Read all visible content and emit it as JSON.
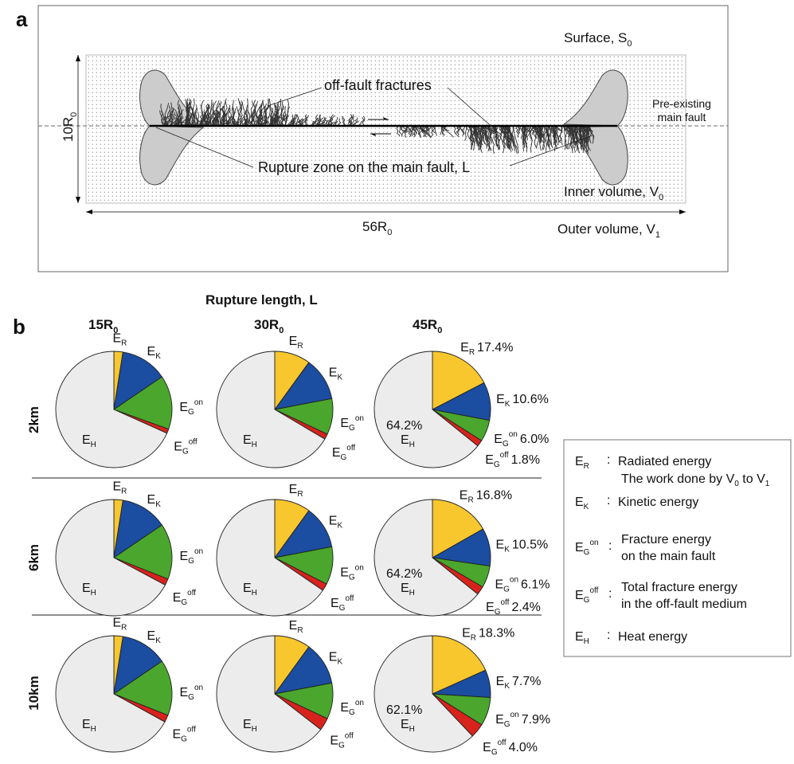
{
  "panel_a": {
    "label": "a",
    "surface_label": "Surface, S",
    "surface_sub": "0",
    "preexisting_line1": "Pre-existing",
    "preexisting_line2": "main fault",
    "offfault_label": "off-fault fractures",
    "rupture_label": "Rupture zone on the main fault, L",
    "inner_label": "Inner volume, V",
    "inner_sub": "0",
    "outer_label": "Outer volume, V",
    "outer_sub": "1",
    "height_label": "10R",
    "height_sub": "0",
    "width_label": "56R",
    "width_sub": "0"
  },
  "panel_b": {
    "label": "b",
    "title": "Rupture length, L",
    "col_headers": [
      {
        "main": "15R",
        "sub": "0"
      },
      {
        "main": "30R",
        "sub": "0"
      },
      {
        "main": "45R",
        "sub": "0"
      }
    ],
    "row_headers": [
      "2km",
      "6km",
      "10km"
    ],
    "colors": {
      "ER": "#f8c72e",
      "EK": "#1b4da0",
      "EGon": "#4aa62c",
      "EGoff": "#d8231c",
      "EH": "#ececec"
    }
  },
  "chart_data": {
    "type": "pie",
    "title": "Rupture length, L",
    "slice_labels": [
      "E_R",
      "E_K",
      "E_G^on",
      "E_G^off",
      "E_H"
    ],
    "rows": [
      "2km",
      "6km",
      "10km"
    ],
    "columns": [
      "15R_0",
      "30R_0",
      "45R_0"
    ],
    "pies": [
      {
        "row": "2km",
        "column": "15R_0",
        "values": [
          2.5,
          13.0,
          15.0,
          1.2,
          68.3
        ],
        "printed": [
          "",
          "",
          "",
          "",
          ""
        ]
      },
      {
        "row": "2km",
        "column": "30R_0",
        "values": [
          10.0,
          12.0,
          10.0,
          1.5,
          66.5
        ],
        "printed": [
          "",
          "",
          "",
          "",
          ""
        ]
      },
      {
        "row": "2km",
        "column": "45R_0",
        "values": [
          17.4,
          10.6,
          6.0,
          1.8,
          64.2
        ],
        "printed": [
          "17.4%",
          "10.6%",
          "6.0%",
          "1.8%",
          "64.2%"
        ]
      },
      {
        "row": "6km",
        "column": "15R_0",
        "values": [
          2.5,
          13.0,
          15.5,
          1.8,
          67.2
        ],
        "printed": [
          "",
          "",
          "",
          "",
          ""
        ]
      },
      {
        "row": "6km",
        "column": "30R_0",
        "values": [
          10.0,
          12.0,
          10.5,
          2.0,
          65.5
        ],
        "printed": [
          "",
          "",
          "",
          "",
          ""
        ]
      },
      {
        "row": "6km",
        "column": "45R_0",
        "values": [
          16.8,
          10.5,
          6.1,
          2.4,
          64.2
        ],
        "printed": [
          "16.8%",
          "10.5%",
          "6.1%",
          "2.4%",
          "64.2%"
        ]
      },
      {
        "row": "10km",
        "column": "15R_0",
        "values": [
          2.5,
          13.0,
          15.5,
          2.0,
          67.0
        ],
        "printed": [
          "",
          "",
          "",
          "",
          ""
        ]
      },
      {
        "row": "10km",
        "column": "30R_0",
        "values": [
          10.0,
          12.0,
          10.0,
          3.5,
          64.5
        ],
        "printed": [
          "",
          "",
          "",
          "",
          ""
        ]
      },
      {
        "row": "10km",
        "column": "45R_0",
        "values": [
          18.3,
          7.7,
          7.9,
          4.0,
          62.1
        ],
        "printed": [
          "18.3%",
          "7.7%",
          "7.9%",
          "4.0%",
          "62.1%"
        ]
      }
    ]
  },
  "legend": {
    "items": [
      {
        "sym": "E",
        "sub": "R",
        "sup": "",
        "colon": ":",
        "line1": "Radiated energy",
        "line2": "The work done by V",
        "line2_sub": "0",
        "line2_mid": " to V",
        "line2_sub2": "1"
      },
      {
        "sym": "E",
        "sub": "K",
        "sup": "",
        "colon": ":",
        "line1": "Kinetic energy",
        "line2": ""
      },
      {
        "sym": "E",
        "sub": "G",
        "sup": "on",
        "colon": ":",
        "line1": "Fracture energy",
        "line2": "on the main fault"
      },
      {
        "sym": "E",
        "sub": "G",
        "sup": "off",
        "colon": ":",
        "line1": "Total fracture energy",
        "line2": "in the off-fault medium"
      },
      {
        "sym": "E",
        "sub": "H",
        "sup": "",
        "colon": ":",
        "line1": "Heat energy",
        "line2": ""
      }
    ]
  }
}
